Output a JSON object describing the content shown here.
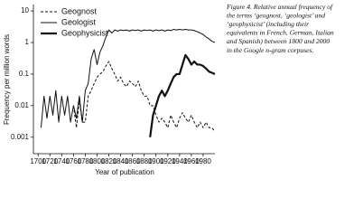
{
  "chart_data": {
    "type": "line",
    "log_y": true,
    "x_label": "Year of publication",
    "y_label": "Frequency per million words",
    "caption": [
      "Figure 4. Relative annual frequency of",
      "the terms ‘geognost, ‘geologist’ and",
      "‘geophysicist’ (including their",
      "equivalents in French, German, Italian",
      "and Spanish) between 1800 and 2000",
      "in the Google n-gram corpuses."
    ],
    "x": [
      1705,
      1710,
      1715,
      1720,
      1725,
      1730,
      1735,
      1740,
      1745,
      1750,
      1755,
      1760,
      1765,
      1770,
      1775,
      1780,
      1785,
      1790,
      1795,
      1800,
      1805,
      1810,
      1815,
      1820,
      1825,
      1830,
      1835,
      1840,
      1845,
      1850,
      1855,
      1860,
      1865,
      1870,
      1875,
      1880,
      1885,
      1890,
      1895,
      1900,
      1905,
      1910,
      1915,
      1920,
      1925,
      1930,
      1935,
      1940,
      1945,
      1950,
      1955,
      1960,
      1965,
      1970,
      1975,
      1980,
      1985,
      1990,
      1995,
      2000
    ],
    "series": [
      {
        "name": "Geognost",
        "color": "#111111",
        "linestyle": "dashed",
        "values": [
          null,
          null,
          null,
          null,
          null,
          null,
          null,
          null,
          null,
          null,
          null,
          0.01,
          0.002,
          0.015,
          0.003,
          0.003,
          0.02,
          0.03,
          0.05,
          0.08,
          0.1,
          0.12,
          0.18,
          0.25,
          0.15,
          0.1,
          0.06,
          0.08,
          0.05,
          0.04,
          0.06,
          0.05,
          0.04,
          0.06,
          0.03,
          0.02,
          0.02,
          0.01,
          0.01,
          0.005,
          0.003,
          0.004,
          0.003,
          0.002,
          0.005,
          0.003,
          0.002,
          0.004,
          0.006,
          0.004,
          0.003,
          0.005,
          0.003,
          0.002,
          0.003,
          0.002,
          0.003,
          0.002,
          0.002,
          0.0015
        ]
      },
      {
        "name": "Geologist",
        "color": "#111111",
        "linestyle": "solid",
        "values": [
          0.002,
          0.02,
          0.004,
          0.02,
          0.005,
          0.03,
          0.003,
          0.02,
          0.005,
          0.02,
          0.003,
          0.01,
          0.004,
          0.02,
          0.003,
          0.03,
          0.05,
          0.3,
          0.6,
          0.2,
          0.5,
          0.8,
          1.5,
          2.5,
          2,
          2.5,
          2.3,
          2.5,
          2.4,
          2.5,
          2.3,
          2.5,
          2.4,
          2.5,
          2.3,
          2.5,
          2.4,
          2.5,
          2.3,
          2.5,
          2.4,
          2.5,
          2.3,
          2.5,
          2.4,
          2.6,
          2.5,
          2.6,
          2.5,
          2.6,
          2.5,
          2.5,
          2.4,
          2.2,
          2,
          1.8,
          1.5,
          1.3,
          1.1,
          1
        ]
      },
      {
        "name": "Geophysicist",
        "color": "#111111",
        "linestyle": "thick",
        "values": [
          null,
          null,
          null,
          null,
          null,
          null,
          null,
          null,
          null,
          null,
          null,
          null,
          null,
          null,
          null,
          null,
          null,
          null,
          null,
          null,
          null,
          null,
          null,
          null,
          null,
          null,
          null,
          null,
          null,
          null,
          null,
          null,
          null,
          null,
          null,
          null,
          null,
          0.001,
          0.005,
          0.01,
          0.02,
          0.03,
          0.02,
          0.03,
          0.05,
          0.08,
          0.1,
          0.1,
          0.2,
          0.4,
          0.3,
          0.2,
          0.25,
          0.2,
          0.2,
          0.18,
          0.15,
          0.12,
          0.11,
          0.1
        ]
      }
    ],
    "xlim": [
      1692,
      2000
    ],
    "ylim": [
      0.0003,
      16
    ],
    "xticks": [
      1700,
      1720,
      1740,
      1760,
      1780,
      1800,
      1820,
      1840,
      1860,
      1880,
      1900,
      1920,
      1940,
      1960,
      1980
    ],
    "yticks": [
      10,
      1,
      0.1,
      0.01,
      0.001
    ],
    "legend": "upper left"
  }
}
